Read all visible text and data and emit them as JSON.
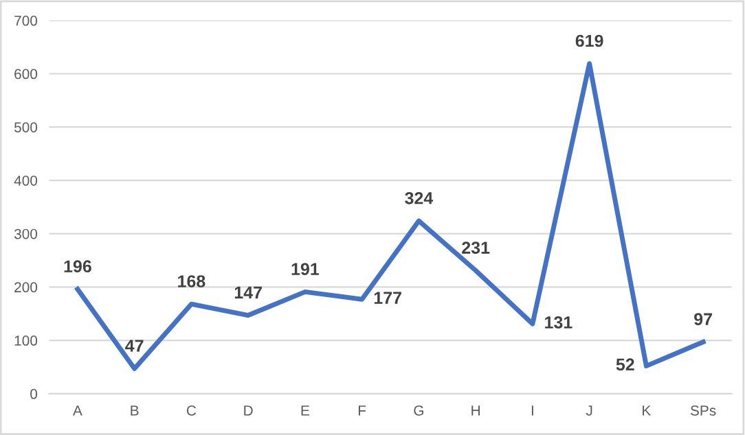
{
  "chart_data": {
    "type": "line",
    "categories": [
      "A",
      "B",
      "C",
      "D",
      "E",
      "F",
      "G",
      "H",
      "I",
      "J",
      "K",
      "SPs"
    ],
    "series": [
      {
        "color": "#4472c4",
        "values": [
          196,
          47,
          168,
          147,
          191,
          177,
          324,
          231,
          131,
          619,
          52,
          97
        ]
      }
    ],
    "ylim": [
      0,
      700
    ],
    "yticks": [
      0,
      100,
      200,
      300,
      400,
      500,
      600,
      700
    ],
    "grid": "y",
    "data_labels": true,
    "marker": "none",
    "line_style": "solid",
    "legend": false
  }
}
